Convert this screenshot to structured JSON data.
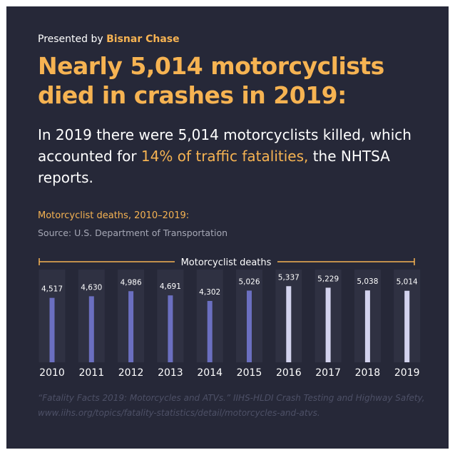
{
  "header": {
    "presented_prefix": "Presented by",
    "brand": "Bisnar Chase",
    "headline": "Nearly 5,014 motorcyclists died in crashes in 2019:"
  },
  "intro": {
    "part1": "In 2019 there were 5,014 motorcyclists killed, which accounted for",
    "highlight": "14% of traffic fatalities,",
    "part2": "the NHTSA reports."
  },
  "chart_title": "Motorcyclist deaths, 2010–2019:",
  "chart_source": "Source: U.S. Department of Transportation",
  "citation": {
    "text": "“Fatality Facts 2019: Motorcycles and ATVs.” IIHS-HLDI Crash Testing and Highway Safety, www.iihs.org/topics/fatality-statistics/detail/motorcycles-and-atvs."
  },
  "colors": {
    "background": "#262838",
    "accent": "#f6b352",
    "bar_early": "#6b6fc0",
    "bar_late": "#d3d3ee",
    "column_bg": "#2f3142"
  },
  "chart_data": {
    "type": "bar",
    "legend": "Motorcyclist deaths",
    "categories": [
      "2010",
      "2011",
      "2012",
      "2013",
      "2014",
      "2015",
      "2016",
      "2017",
      "2018",
      "2019"
    ],
    "values": [
      4517,
      4630,
      4986,
      4691,
      4302,
      5026,
      5337,
      5229,
      5038,
      5014
    ],
    "value_labels": [
      "4,517",
      "4,630",
      "4,986",
      "4,691",
      "4,302",
      "5,026",
      "5,337",
      "5,229",
      "5,038",
      "5,014"
    ],
    "ylim": [
      0,
      6500
    ],
    "grid": false
  }
}
